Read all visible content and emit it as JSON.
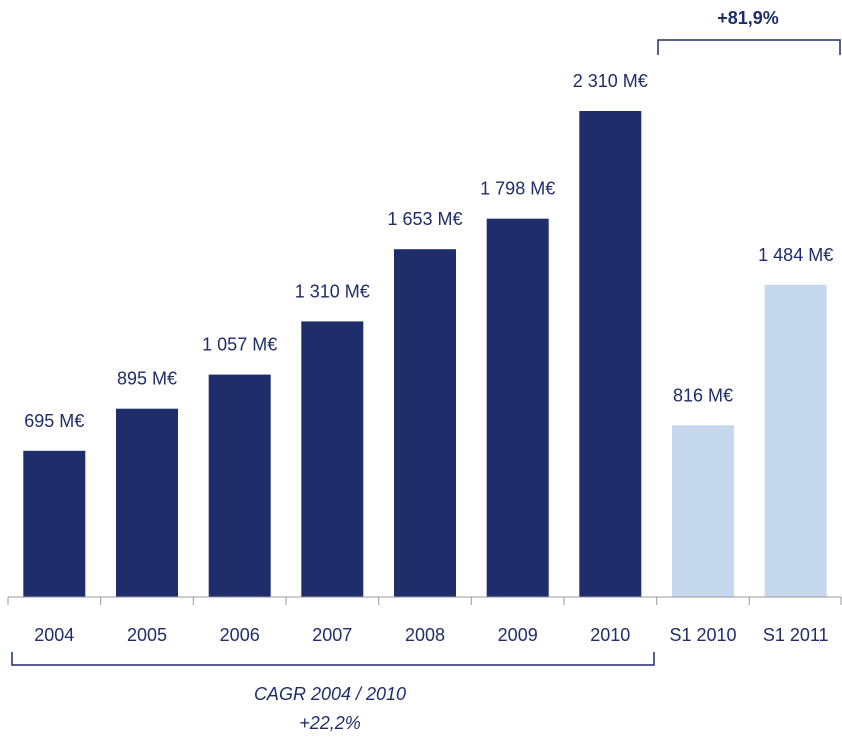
{
  "chart_data": {
    "type": "bar",
    "categories": [
      "2004",
      "2005",
      "2006",
      "2007",
      "2008",
      "2009",
      "2010",
      "S1 2010",
      "S1 2011"
    ],
    "values": [
      695,
      895,
      1057,
      1310,
      1653,
      1798,
      2310,
      816,
      1484
    ],
    "value_labels": [
      "695 M€",
      "895 M€",
      "1 057 M€",
      "1 310 M€",
      "1 653 M€",
      "1 798 M€",
      "2 310 M€",
      "816 M€",
      "1 484 M€"
    ],
    "ylim": [
      0,
      2310
    ],
    "grid": false,
    "colors": {
      "annual": "#1f2d6b",
      "half_year": "#c5d8ee",
      "axis": "#999999"
    },
    "annotations": {
      "half_year_growth": "+81,9%",
      "cagr_line1": "CAGR 2004 / 2010",
      "cagr_line2": "+22,2%"
    }
  }
}
